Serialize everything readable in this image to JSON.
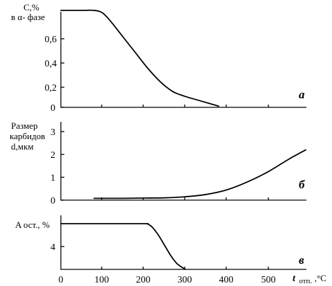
{
  "chart_data": [
    {
      "type": "line",
      "panel_label": "а",
      "ylabel_lines": [
        "C,%",
        "в α- фазе"
      ],
      "xlim": [
        0,
        600
      ],
      "ylim": [
        0,
        0.8
      ],
      "yticks": [
        0,
        0.2,
        0.4,
        0.6
      ],
      "ytick_labels": [
        "0",
        "0,2",
        "0,4",
        "0,6"
      ],
      "series": [
        {
          "x": [
            0,
            50,
            80,
            100,
            120,
            150,
            180,
            210,
            240,
            270,
            300,
            340,
            380
          ],
          "y": [
            0.8,
            0.8,
            0.8,
            0.78,
            0.71,
            0.58,
            0.45,
            0.32,
            0.21,
            0.13,
            0.09,
            0.05,
            0.01
          ]
        }
      ]
    },
    {
      "type": "line",
      "panel_label": "б",
      "ylabel_lines": [
        "Размер",
        "карбидов",
        "d,мкм"
      ],
      "xlim": [
        0,
        600
      ],
      "ylim": [
        0,
        3.2
      ],
      "yticks": [
        0,
        1,
        2,
        3
      ],
      "ytick_labels": [
        "0",
        "1",
        "2",
        "3"
      ],
      "series": [
        {
          "x": [
            80,
            150,
            200,
            250,
            300,
            350,
            400,
            450,
            500,
            550,
            590
          ],
          "y": [
            0.08,
            0.08,
            0.09,
            0.1,
            0.15,
            0.25,
            0.45,
            0.8,
            1.25,
            1.8,
            2.2
          ]
        }
      ]
    },
    {
      "type": "line",
      "panel_label": "в",
      "ylabel": "A ост., %",
      "xlabel_main": "t",
      "xlabel_sub": "отп.",
      "xlabel_unit": ",°C",
      "xlim": [
        0,
        600
      ],
      "ylim": [
        2,
        6.6
      ],
      "yticks": [
        4
      ],
      "ytick_labels": [
        "4"
      ],
      "xticks": [
        0,
        100,
        200,
        300,
        400,
        500
      ],
      "xtick_labels": [
        "0",
        "100",
        "200",
        "300",
        "400",
        "500"
      ],
      "series": [
        {
          "x": [
            0,
            100,
            200,
            210,
            220,
            235,
            250,
            265,
            280,
            300
          ],
          "y": [
            6,
            6,
            6,
            5.95,
            5.7,
            5.0,
            4.1,
            3.2,
            2.5,
            2.0
          ]
        }
      ]
    }
  ]
}
